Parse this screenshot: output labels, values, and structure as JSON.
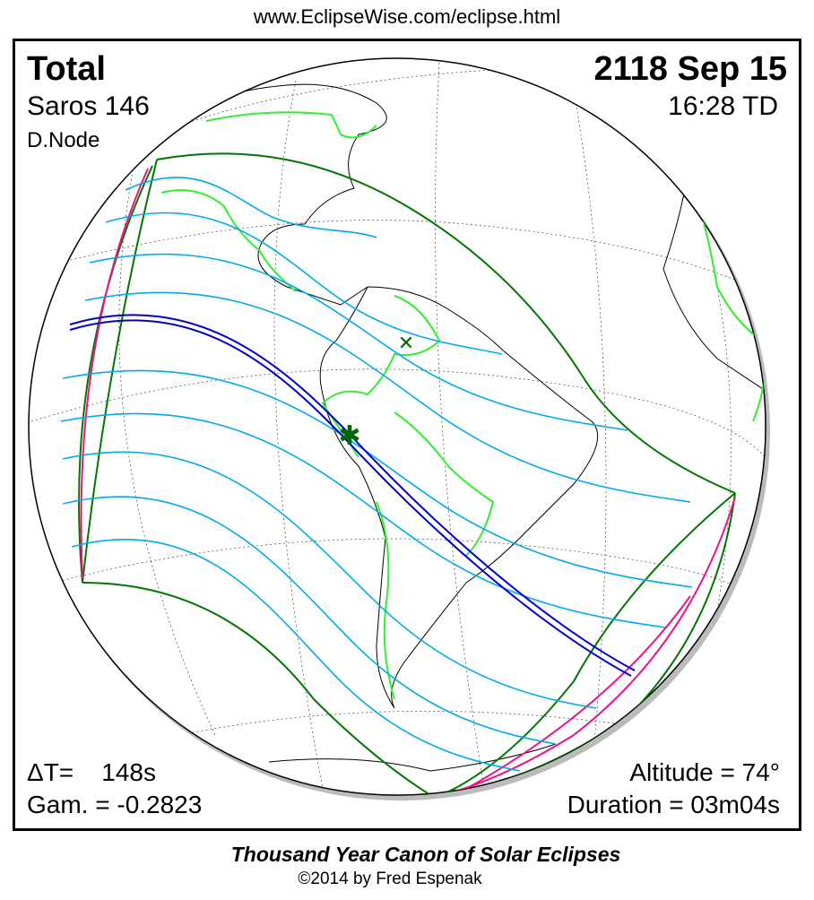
{
  "header": {
    "url": "www.EclipseWise.com/eclipse.html"
  },
  "info": {
    "type": "Total",
    "date": "2118 Sep 15",
    "saros": "Saros 146",
    "time": "16:28 TD",
    "node": "D.Node",
    "delta_t": "ΔT=    148s",
    "gamma": "Gam. = -0.2823",
    "altitude": "Altitude = 74°",
    "duration": "Duration = 03m04s"
  },
  "footer": {
    "title": "Thousand Year Canon of Solar Eclipses",
    "copyright": "©2014 by Fred Espenak"
  },
  "colors": {
    "central_line": "#0000cc",
    "cyan_lines": "#00aaee",
    "limit_lines": "#ee1188",
    "penumbra_boundary": "#007700",
    "borders": "#33ee33",
    "greatest_eclipse_marker": "#006600"
  },
  "markers": {
    "greatest_eclipse": "star-marker",
    "greatest_duration": "x-marker"
  }
}
